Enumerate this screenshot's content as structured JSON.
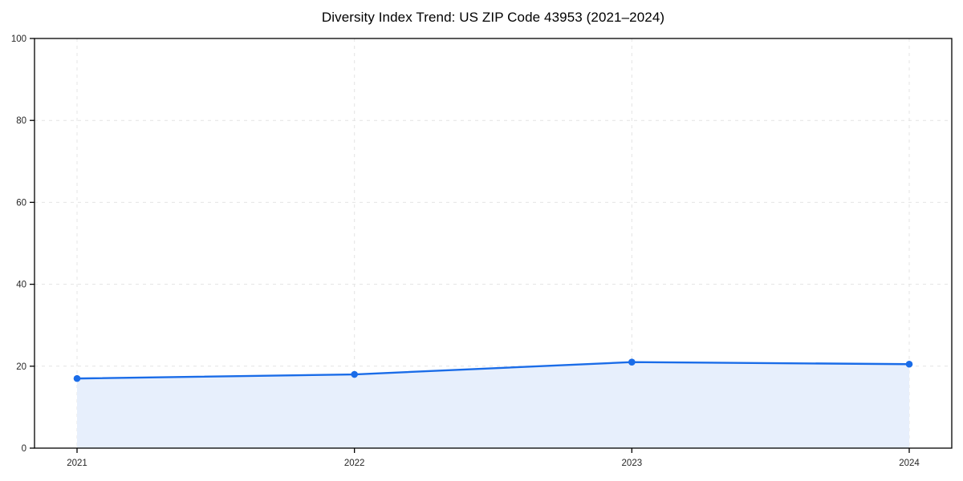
{
  "title": "Diversity Index Trend: US ZIP Code 43953 (2021–2024)",
  "chart_data": {
    "type": "area",
    "title": "Diversity Index Trend: US ZIP Code 43953 (2021–2024)",
    "categories": [
      "2021",
      "2022",
      "2023",
      "2024"
    ],
    "series": [
      {
        "name": "Diversity Index",
        "values": [
          17,
          18,
          21,
          20.5
        ]
      }
    ],
    "xlabel": "",
    "ylabel": "",
    "ylim": [
      0,
      100
    ],
    "yticks": [
      0,
      20,
      40,
      60,
      80,
      100
    ],
    "grid": true,
    "grid_style": "dashed",
    "legend_position": "none",
    "line_color": "#1a6ce8",
    "fill_color": "#e7effc",
    "grid_color": "#e4e4e4",
    "spine_color": "#000000",
    "tick_label_color": "#262626",
    "title_color": "#000000",
    "marker": "circle"
  }
}
